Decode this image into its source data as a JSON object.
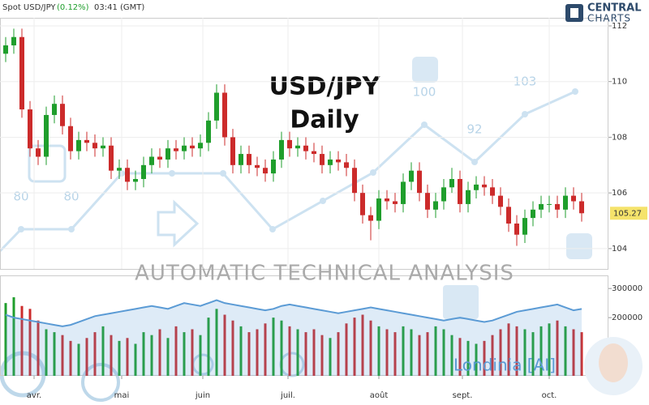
{
  "header": {
    "instrument": "Spot USD/JPY",
    "change": "(0.12%)",
    "time": "03:41 (GMT)"
  },
  "logo": {
    "line1": "CENTRAL",
    "line2": "CHARTS"
  },
  "watermark": "AUTOMATIC  TECHNICAL  ANALYSIS",
  "brand": "Londinia [AI]",
  "background_numbers": [
    "80",
    "80",
    "100",
    "92",
    "103"
  ],
  "chart_data": {
    "type": "candlestick",
    "title": "USD/JPY",
    "subtitle": "Daily",
    "up_color": "#1f9e2c",
    "down_color": "#cc2b2b",
    "volume_line_color": "#5b9bd5",
    "open": [
      111.0,
      111.3,
      111.6,
      109.0,
      107.6,
      107.3,
      108.8,
      109.2,
      108.4,
      107.5,
      107.9,
      107.8,
      107.6,
      107.7,
      106.8,
      106.9,
      106.4,
      106.5,
      107.0,
      107.3,
      107.2,
      107.6,
      107.5,
      107.7,
      107.6,
      107.8,
      108.6,
      109.6,
      108.0,
      107.0,
      107.4,
      107.0,
      106.9,
      106.7,
      107.2,
      107.9,
      107.6,
      107.7,
      107.5,
      107.4,
      107.0,
      107.2,
      107.1,
      106.9,
      106.0,
      105.2,
      105.0,
      105.8,
      105.7,
      105.6,
      106.4,
      106.8,
      106.0,
      105.4,
      105.7,
      106.2,
      106.5,
      105.6,
      106.1,
      106.3,
      106.2,
      105.9,
      105.5,
      104.9,
      104.5,
      105.1,
      105.4,
      105.6,
      105.6,
      105.4,
      105.9,
      105.7
    ],
    "high": [
      111.6,
      111.9,
      111.9,
      109.3,
      107.9,
      109.1,
      109.5,
      109.5,
      108.7,
      108.2,
      108.2,
      108.1,
      108.0,
      108.0,
      107.2,
      107.2,
      106.8,
      107.3,
      107.6,
      107.6,
      107.9,
      107.9,
      108.0,
      108.0,
      108.1,
      108.9,
      109.9,
      109.9,
      108.3,
      107.7,
      107.7,
      107.3,
      107.2,
      107.5,
      108.2,
      108.2,
      108.0,
      108.0,
      107.8,
      107.7,
      107.5,
      107.5,
      107.4,
      107.2,
      106.3,
      105.5,
      106.1,
      106.1,
      106.0,
      106.7,
      107.1,
      107.1,
      106.3,
      106.0,
      106.5,
      106.9,
      106.8,
      106.4,
      106.6,
      106.6,
      106.5,
      106.2,
      105.8,
      105.2,
      105.4,
      105.7,
      105.9,
      105.9,
      105.9,
      106.2,
      106.2,
      106.0
    ],
    "low": [
      110.7,
      111.0,
      108.7,
      107.3,
      107.0,
      107.0,
      108.5,
      108.1,
      107.2,
      107.2,
      107.5,
      107.3,
      107.3,
      106.5,
      106.5,
      106.1,
      106.1,
      106.2,
      106.7,
      106.9,
      106.9,
      107.2,
      107.2,
      107.3,
      107.3,
      107.5,
      108.3,
      107.7,
      106.7,
      106.7,
      106.7,
      106.6,
      106.4,
      106.4,
      106.9,
      107.3,
      107.3,
      107.2,
      107.1,
      106.7,
      106.7,
      106.8,
      106.6,
      105.7,
      104.9,
      104.3,
      104.7,
      105.4,
      105.3,
      105.3,
      106.1,
      105.7,
      105.1,
      105.1,
      105.4,
      106.0,
      105.3,
      105.3,
      105.8,
      105.9,
      105.6,
      105.2,
      104.6,
      104.1,
      104.2,
      104.8,
      105.1,
      105.3,
      105.1,
      105.1,
      105.4,
      104.97
    ],
    "close": [
      111.3,
      111.6,
      109.0,
      107.6,
      107.3,
      108.8,
      109.2,
      108.4,
      107.5,
      107.9,
      107.8,
      107.6,
      107.7,
      106.8,
      106.9,
      106.4,
      106.5,
      107.0,
      107.3,
      107.2,
      107.6,
      107.5,
      107.7,
      107.6,
      107.8,
      108.6,
      109.6,
      108.0,
      107.0,
      107.4,
      107.0,
      106.9,
      106.7,
      107.2,
      107.9,
      107.6,
      107.7,
      107.5,
      107.4,
      107.0,
      107.2,
      107.1,
      106.9,
      106.0,
      105.2,
      105.0,
      105.8,
      105.7,
      105.6,
      106.4,
      106.8,
      106.0,
      105.4,
      105.7,
      106.2,
      106.5,
      105.6,
      106.1,
      106.3,
      106.2,
      105.9,
      105.5,
      104.9,
      104.5,
      105.1,
      105.4,
      105.6,
      105.6,
      105.4,
      105.9,
      105.7,
      105.27
    ],
    "volume": [
      250000,
      270000,
      240000,
      230000,
      190000,
      160000,
      150000,
      140000,
      120000,
      110000,
      130000,
      150000,
      170000,
      140000,
      120000,
      130000,
      110000,
      150000,
      140000,
      160000,
      130000,
      170000,
      150000,
      160000,
      140000,
      200000,
      230000,
      210000,
      190000,
      170000,
      150000,
      160000,
      180000,
      200000,
      190000,
      170000,
      160000,
      150000,
      160000,
      140000,
      130000,
      150000,
      180000,
      200000,
      210000,
      190000,
      170000,
      160000,
      150000,
      170000,
      160000,
      140000,
      150000,
      170000,
      160000,
      140000,
      130000,
      120000,
      110000,
      120000,
      140000,
      160000,
      180000,
      170000,
      160000,
      150000,
      170000,
      180000,
      190000,
      170000,
      160000,
      150000
    ],
    "volume_average": [
      210000,
      200000,
      195000,
      190000,
      185000,
      180000,
      175000,
      170000,
      175000,
      185000,
      195000,
      205000,
      210000,
      215000,
      220000,
      225000,
      230000,
      235000,
      240000,
      235000,
      230000,
      240000,
      250000,
      245000,
      240000,
      250000,
      260000,
      250000,
      245000,
      240000,
      235000,
      230000,
      225000,
      230000,
      240000,
      245000,
      240000,
      235000,
      230000,
      225000,
      220000,
      215000,
      220000,
      225000,
      230000,
      235000,
      230000,
      225000,
      220000,
      215000,
      210000,
      205000,
      200000,
      195000,
      190000,
      195000,
      200000,
      195000,
      190000,
      185000,
      190000,
      200000,
      210000,
      220000,
      225000,
      230000,
      235000,
      240000,
      245000,
      235000,
      225000,
      230000
    ],
    "xticks": [
      {
        "value": 3.5,
        "label": "avr."
      },
      {
        "value": 14.3,
        "label": "mai"
      },
      {
        "value": 24.3,
        "label": "juin"
      },
      {
        "value": 34.8,
        "label": "juil."
      },
      {
        "value": 46,
        "label": "août"
      },
      {
        "value": 56.3,
        "label": "sept."
      },
      {
        "value": 67,
        "label": "oct."
      }
    ],
    "ylim": [
      103.27,
      112.29
    ],
    "yticks": [
      104,
      106,
      108,
      110,
      112
    ],
    "y2lim": [
      0,
      345000
    ],
    "y2ticks": [
      200000,
      300000
    ]
  }
}
